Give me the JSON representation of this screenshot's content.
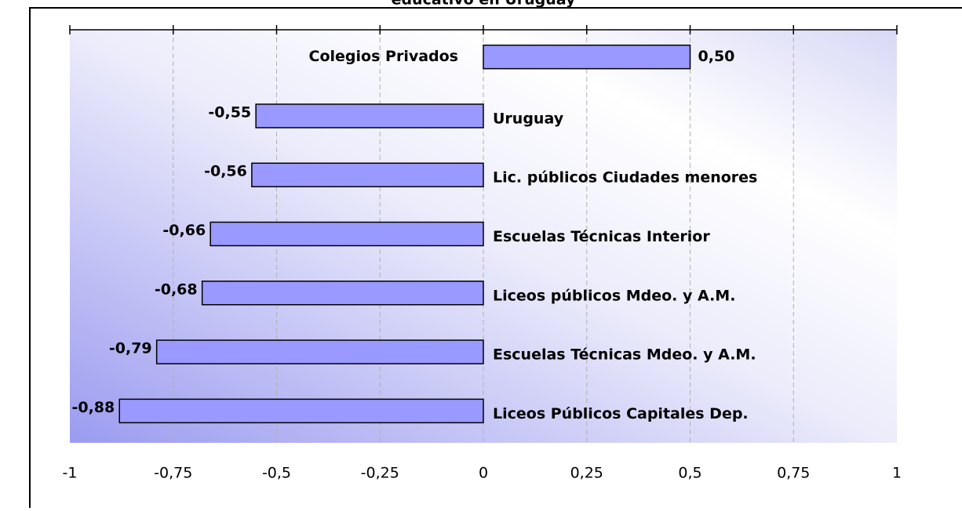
{
  "chart_data": {
    "type": "barh",
    "title": "educativo en Uruguay",
    "categories": [
      "Colegios Privados",
      "Uruguay",
      "Lic. públicos Ciudades menores",
      "Escuelas Técnicas Interior",
      "Liceos públicos Mdeo. y A.M.",
      "Escuelas Técnicas Mdeo. y A.M.",
      "Liceos Públicos Capitales Dep."
    ],
    "values": [
      0.5,
      -0.55,
      -0.56,
      -0.66,
      -0.68,
      -0.79,
      -0.88
    ],
    "value_labels": [
      "0,50",
      "-0,55",
      "-0,56",
      "-0,66",
      "-0,68",
      "-0,79",
      "-0,88"
    ],
    "color": "#9999ff",
    "xlim": [
      -1,
      1
    ],
    "xticks": [
      -1,
      {
        "value": -0.75,
        "label": "-0,75"
      },
      {
        "value": -0.5,
        "label": "-0,5"
      },
      {
        "value": -0.25,
        "label": "-0,25"
      },
      0,
      {
        "value": 0.25,
        "label": "0,25"
      },
      {
        "value": 0.5,
        "label": "0,5"
      },
      {
        "value": 0.75,
        "label": "0,75"
      },
      1
    ],
    "grid": true
  }
}
